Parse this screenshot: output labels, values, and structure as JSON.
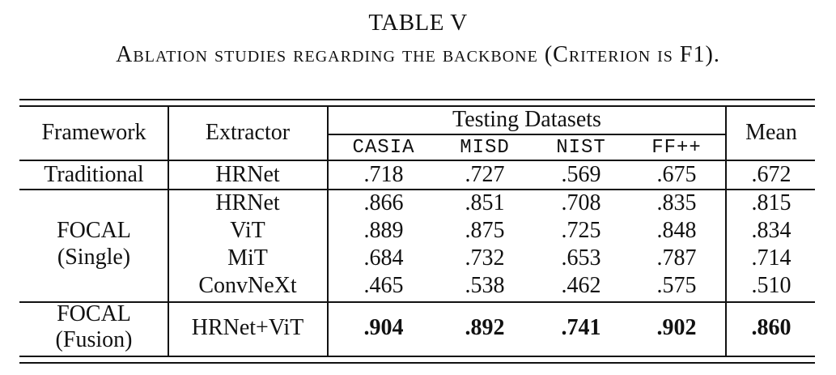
{
  "caption": {
    "title": "TABLE V",
    "subtitle": "Ablation studies regarding the backbone (Criterion is F1)."
  },
  "table": {
    "headers": {
      "framework": "Framework",
      "extractor": "Extractor",
      "testing_datasets": "Testing Datasets",
      "mean": "Mean",
      "datasets": [
        "CASIA",
        "MISD",
        "NIST",
        "FF++"
      ]
    },
    "rows": [
      {
        "framework": "Traditional",
        "extractor": "HRNet",
        "values": [
          ".718",
          ".727",
          ".569",
          ".675"
        ],
        "mean": ".672"
      },
      {
        "framework": "FOCAL",
        "framework_sub": "(Single)",
        "extractor": "HRNet",
        "values": [
          ".866",
          ".851",
          ".708",
          ".835"
        ],
        "mean": ".815"
      },
      {
        "extractor": "ViT",
        "values": [
          ".889",
          ".875",
          ".725",
          ".848"
        ],
        "mean": ".834"
      },
      {
        "extractor": "MiT",
        "values": [
          ".684",
          ".732",
          ".653",
          ".787"
        ],
        "mean": ".714"
      },
      {
        "extractor": "ConvNeXt",
        "values": [
          ".465",
          ".538",
          ".462",
          ".575"
        ],
        "mean": ".510"
      },
      {
        "framework": "FOCAL",
        "framework_sub": "(Fusion)",
        "extractor": "HRNet+ViT",
        "values": [
          ".904",
          ".892",
          ".741",
          ".902"
        ],
        "mean": ".860",
        "bold": true
      }
    ]
  }
}
